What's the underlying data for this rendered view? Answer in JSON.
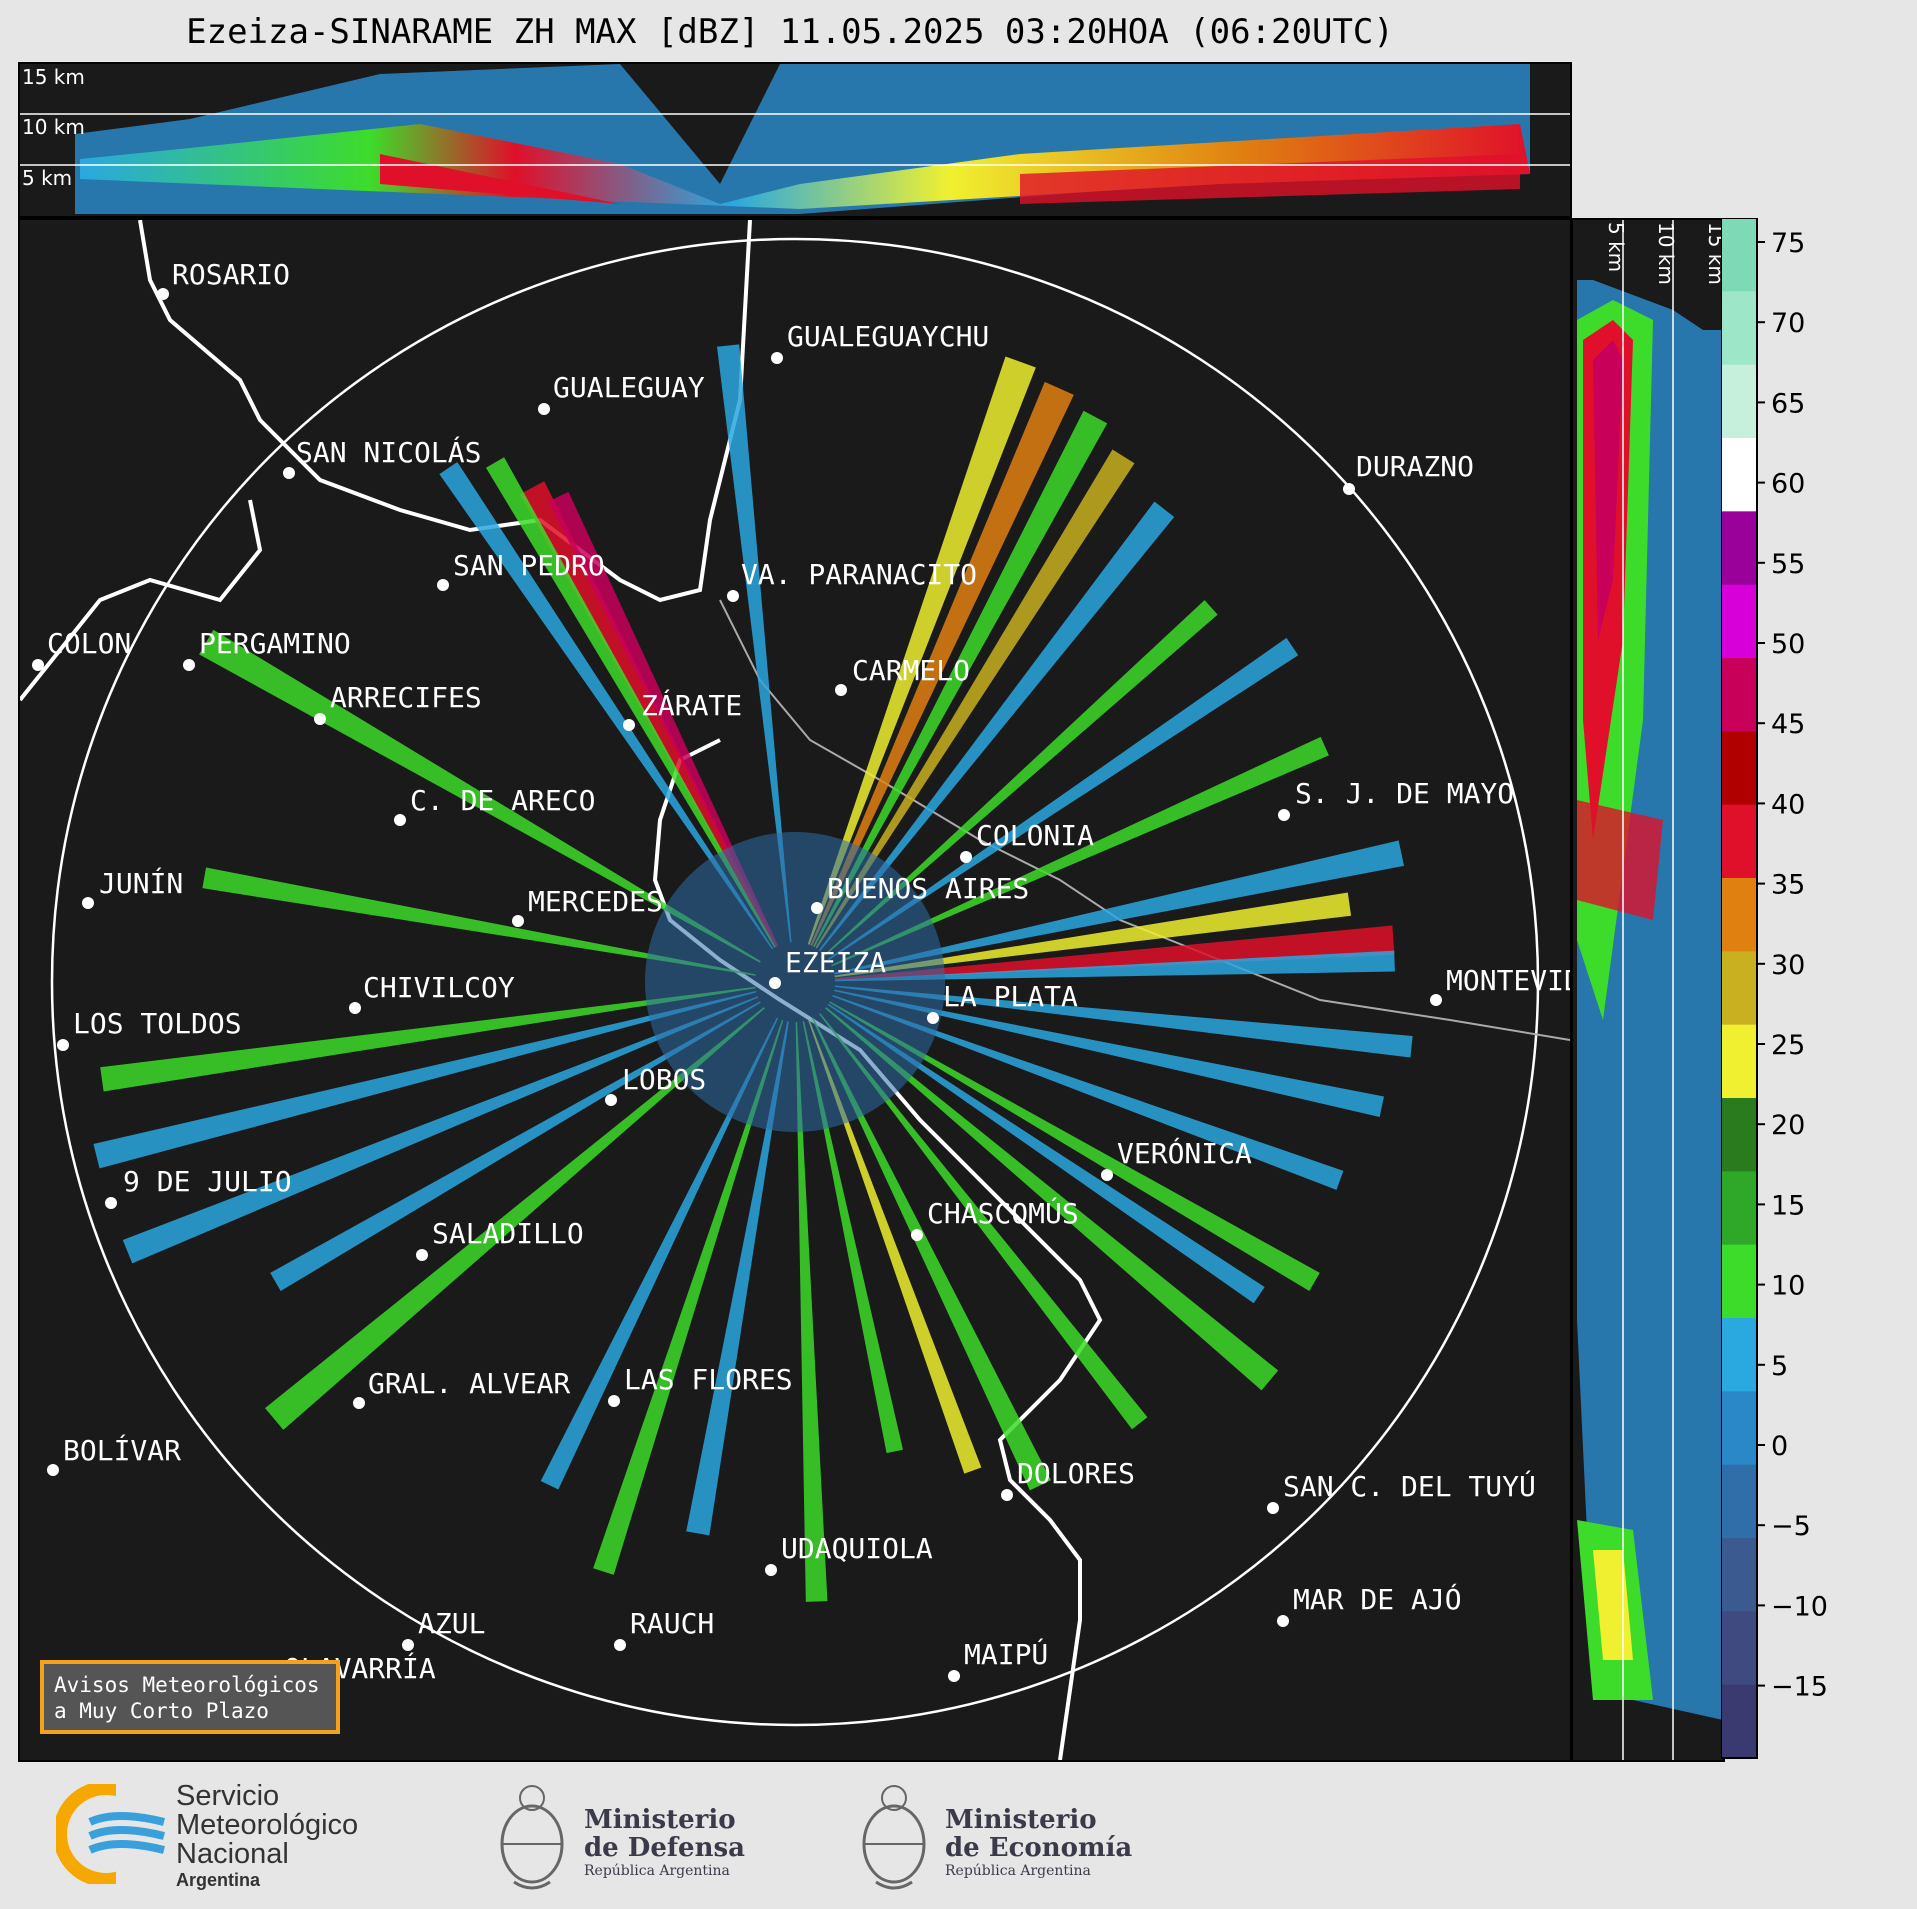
{
  "title": "Ezeiza-SINARAME ZH MAX [dBZ] 11.05.2025 03:20HOA (06:20UTC)",
  "top_panel": {
    "height_labels": [
      "15 km",
      "10 km",
      "5 km"
    ]
  },
  "side_panel": {
    "height_labels": [
      "5 km",
      "10 km",
      "15 km"
    ]
  },
  "colorbar": {
    "ticks": [
      "75",
      "70",
      "65",
      "60",
      "55",
      "50",
      "45",
      "40",
      "35",
      "30",
      "25",
      "20",
      "15",
      "10",
      "5",
      "0",
      "−5",
      "−10",
      "−15"
    ],
    "colors": [
      "#7dd9b6",
      "#9ee6c8",
      "#c6f0dc",
      "#ffffff",
      "#9a009a",
      "#d800d8",
      "#c8005a",
      "#b00000",
      "#e0102a",
      "#e08010",
      "#c8b020",
      "#f0f030",
      "#2a7a1e",
      "#2fa82a",
      "#3ddc2a",
      "#2aa8e0",
      "#2a88c8",
      "#2f6ea8",
      "#3a5a90",
      "#3f4a80",
      "#3a3a70"
    ]
  },
  "cities": [
    {
      "name": "ROSARIO"
    },
    {
      "name": "GUALEGUAYCHU"
    },
    {
      "name": "GUALEGUAY"
    },
    {
      "name": "SAN NICOLÁS"
    },
    {
      "name": "DURAZNO"
    },
    {
      "name": "SAN PEDRO"
    },
    {
      "name": "VA. PARANACITO"
    },
    {
      "name": "COLON"
    },
    {
      "name": "PERGAMINO"
    },
    {
      "name": "CARMELO"
    },
    {
      "name": "ARRECIFES"
    },
    {
      "name": "ZÁRATE"
    },
    {
      "name": "C. DE ARECO"
    },
    {
      "name": "S. J. DE MAYO"
    },
    {
      "name": "COLONIA"
    },
    {
      "name": "JUNÍN"
    },
    {
      "name": "MERCEDES"
    },
    {
      "name": "BUENOS AIRES"
    },
    {
      "name": "EZEIZA"
    },
    {
      "name": "MONTEVIDEO"
    },
    {
      "name": "CHIVILCOY"
    },
    {
      "name": "LA PLATA"
    },
    {
      "name": "LOS TOLDOS"
    },
    {
      "name": "LOBOS"
    },
    {
      "name": "VERÓNICA"
    },
    {
      "name": "9 DE JULIO"
    },
    {
      "name": "CHASCOMÚS"
    },
    {
      "name": "SALADILLO"
    },
    {
      "name": "GRAL. ALVEAR"
    },
    {
      "name": "LAS FLORES"
    },
    {
      "name": "BOLÍVAR"
    },
    {
      "name": "DOLORES"
    },
    {
      "name": "SAN C. DEL TUYÚ"
    },
    {
      "name": "UDAQUIOLA"
    },
    {
      "name": "MAR DE AJÓ"
    },
    {
      "name": "AZUL"
    },
    {
      "name": "RAUCH"
    },
    {
      "name": "OLAVARRÍA"
    },
    {
      "name": "MAIPÚ"
    }
  ],
  "avisos_box": {
    "line1": "Avisos Meteorológicos",
    "line2": "a Muy Corto Plazo"
  },
  "footer": {
    "smn": {
      "line1": "Servicio",
      "line2": "Meteorológico",
      "line3": "Nacional",
      "line4": "Argentina"
    },
    "defensa": {
      "line1": "Ministerio",
      "line2": "de Defensa",
      "line3": "República Argentina"
    },
    "economia": {
      "line1": "Ministerio",
      "line2": "de Economía",
      "line3": "República Argentina"
    }
  }
}
